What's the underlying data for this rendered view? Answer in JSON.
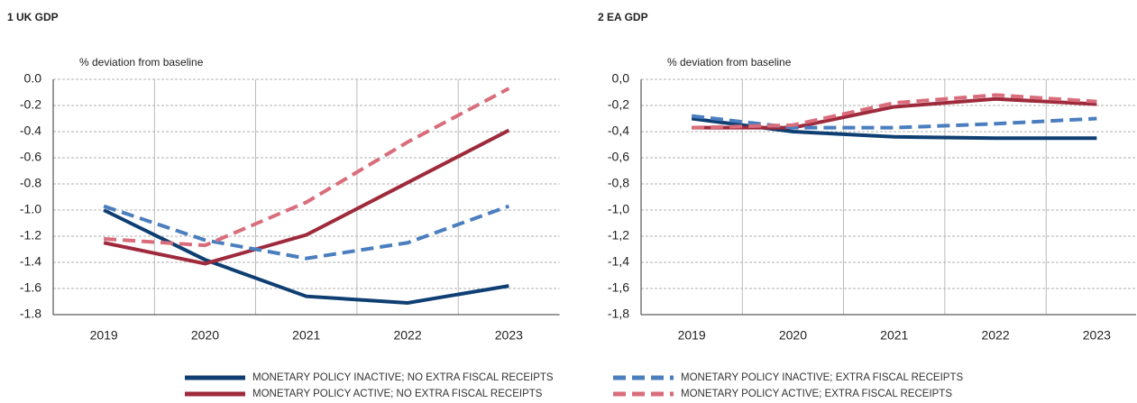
{
  "chart_data": [
    {
      "type": "line",
      "title": "1  UK GDP",
      "subtitle": "% deviation from baseline",
      "categories": [
        "2019",
        "2020",
        "2021",
        "2022",
        "2023"
      ],
      "ylim": [
        -1.8,
        0
      ],
      "yticks": [
        {
          "value": 0,
          "label": "0.0"
        },
        -0.2,
        -0.4,
        -0.6,
        -0.8,
        {
          "value": -1,
          "label": "-1.0"
        },
        -1.2,
        -1.4,
        -1.6,
        -1.8
      ],
      "grid": true,
      "series": [
        {
          "name": "MONETARY POLICY INACTIVE; NO EXTRA FISCAL RECEIPTS",
          "color": "#0f3f72",
          "dashed": false,
          "values": [
            -1.0,
            -1.38,
            -1.66,
            -1.71,
            -1.58
          ]
        },
        {
          "name": "MONETARY POLICY ACTIVE; NO EXTRA FISCAL RECEIPTS",
          "color": "#9e2a3c",
          "dashed": false,
          "values": [
            -1.25,
            -1.41,
            -1.19,
            -0.79,
            -0.39
          ]
        },
        {
          "name": "MONETARY POLICY INACTIVE; EXTRA FISCAL RECEIPTS",
          "color": "#4a7ebf",
          "dashed": true,
          "values": [
            -0.97,
            -1.23,
            -1.37,
            -1.25,
            -0.97
          ]
        },
        {
          "name": "MONETARY POLICY ACTIVE; EXTRA FISCAL RECEIPTS",
          "color": "#d96d7b",
          "dashed": true,
          "values": [
            -1.22,
            -1.27,
            -0.94,
            -0.48,
            -0.07
          ]
        }
      ]
    },
    {
      "type": "line",
      "title": "2  EA GDP",
      "subtitle": "% deviation from baseline",
      "categories": [
        "2019",
        "2020",
        "2021",
        "2022",
        "2023"
      ],
      "ylim": [
        -1.8,
        0
      ],
      "yticks": [
        {
          "value": 0,
          "label": "0,0"
        },
        {
          "value": -0.2,
          "label": "-0,2"
        },
        {
          "value": -0.4,
          "label": "-0,4"
        },
        {
          "value": -0.6,
          "label": "-0,6"
        },
        {
          "value": -0.8,
          "label": "-0,8"
        },
        {
          "value": -1,
          "label": "-1,0"
        },
        {
          "value": -1.2,
          "label": "-1,2"
        },
        {
          "value": -1.4,
          "label": "-1,4"
        },
        {
          "value": -1.6,
          "label": "-1,6"
        },
        {
          "value": -1.8,
          "label": "-1,8"
        }
      ],
      "grid": true,
      "series": [
        {
          "color": "#0f3f72",
          "dashed": false,
          "values": [
            -0.3,
            -0.4,
            -0.44,
            -0.45,
            -0.45
          ]
        },
        {
          "color": "#9e2a3c",
          "dashed": false,
          "values": [
            -0.37,
            -0.37,
            -0.21,
            -0.15,
            -0.19
          ]
        },
        {
          "color": "#4a7ebf",
          "dashed": true,
          "values": [
            -0.28,
            -0.37,
            -0.37,
            -0.34,
            -0.3
          ]
        },
        {
          "color": "#d96d7b",
          "dashed": true,
          "values": [
            -0.37,
            -0.35,
            -0.18,
            -0.12,
            -0.17
          ]
        }
      ]
    }
  ]
}
